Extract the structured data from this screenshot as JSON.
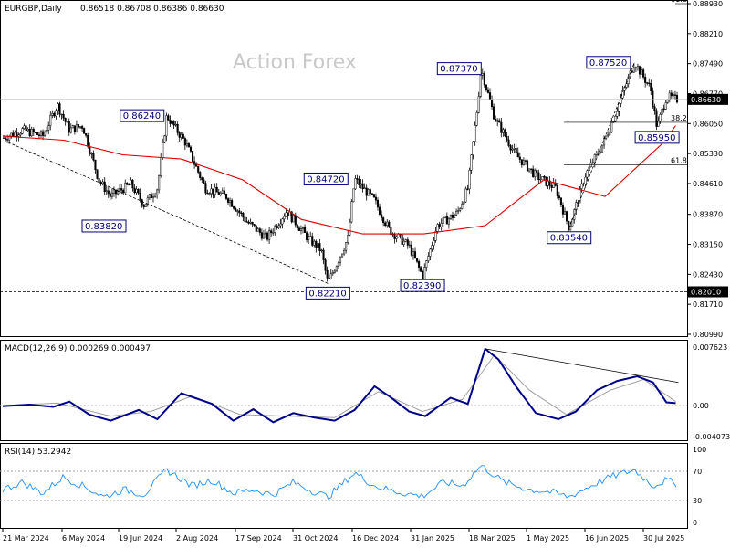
{
  "header": {
    "symbol": "EURGBP,Daily",
    "ohlc": "0.86518 0.86708 0.86386 0.86630",
    "watermark": "Action Forex"
  },
  "colors": {
    "candles": "#000000",
    "ma": "#dc0000",
    "macd_main": "#00008b",
    "macd_signal": "#a0a0a0",
    "rsi": "#1e90ff",
    "label_box": "#00007a",
    "grid": "#ffffff"
  },
  "chart_data": [
    {
      "type": "candlestick",
      "name": "price",
      "price_axis": [
        "0.88930",
        "0.88210",
        "0.87490",
        "0.86770",
        "0.86050",
        "0.85330",
        "0.84610",
        "0.83870",
        "0.83150",
        "0.82430",
        "0.81710",
        "0.80990"
      ],
      "ylim": [
        0.8099,
        0.8893
      ],
      "current_price": "0.86630",
      "horizontal_level": "0.82010",
      "fib_labels": [
        {
          "text": "61.8",
          "price": 0.8893
        },
        {
          "text": "38.2",
          "price": 0.8608
        },
        {
          "text": "61.8",
          "price": 0.8506
        }
      ],
      "annotations": [
        {
          "text": "0.86240",
          "x": "2024-07-20",
          "y": 0.8624,
          "side": "left"
        },
        {
          "text": "0.83820",
          "x": "2024-06-05",
          "y": 0.8382,
          "side": "below"
        },
        {
          "text": "0.84720",
          "x": "2024-12-05",
          "y": 0.8472,
          "side": "left"
        },
        {
          "text": "0.82210",
          "x": "2024-11-20",
          "y": 0.8221,
          "side": "below"
        },
        {
          "text": "0.87370",
          "x": "2025-03-15",
          "y": 0.8737,
          "side": "left"
        },
        {
          "text": "0.82390",
          "x": "2025-01-30",
          "y": 0.8239,
          "side": "below"
        },
        {
          "text": "0.83540",
          "x": "2025-05-20",
          "y": 0.8354,
          "side": "below"
        },
        {
          "text": "0.87520",
          "x": "2025-07-05",
          "y": 0.8752,
          "side": "left"
        },
        {
          "text": "0.85950",
          "x": "2025-07-25",
          "y": 0.8595,
          "side": "below"
        }
      ],
      "ma_line": [
        [
          "2024-03-21",
          0.8575
        ],
        [
          "2024-05-06",
          0.8565
        ],
        [
          "2024-06-19",
          0.853
        ],
        [
          "2024-08-02",
          0.852
        ],
        [
          "2024-09-17",
          0.847
        ],
        [
          "2024-10-31",
          0.8375
        ],
        [
          "2024-12-16",
          0.834
        ],
        [
          "2025-01-31",
          0.834
        ],
        [
          "2025-03-18",
          0.836
        ],
        [
          "2025-05-01",
          0.847
        ],
        [
          "2025-06-16",
          0.843
        ],
        [
          "2025-07-30",
          0.856
        ],
        [
          "2025-08-08",
          0.86
        ]
      ],
      "trendlines": [
        {
          "from": [
            "2024-03-25",
            0.856
          ],
          "to": [
            "2024-11-20",
            0.8221
          ],
          "style": "dashed"
        },
        {
          "from": [
            "2025-05-20",
            0.8354
          ],
          "to": [
            "2025-07-08",
            0.8752
          ],
          "style": "dashed"
        }
      ],
      "close_path": [
        [
          "2024-03-21",
          0.857
        ],
        [
          "2024-04-05",
          0.859
        ],
        [
          "2024-04-20",
          0.8575
        ],
        [
          "2024-05-01",
          0.865
        ],
        [
          "2024-05-10",
          0.859
        ],
        [
          "2024-05-20",
          0.86
        ],
        [
          "2024-06-01",
          0.847
        ],
        [
          "2024-06-10",
          0.843
        ],
        [
          "2024-06-25",
          0.846
        ],
        [
          "2024-07-05",
          0.841
        ],
        [
          "2024-07-15",
          0.845
        ],
        [
          "2024-07-22",
          0.8624
        ],
        [
          "2024-08-05",
          0.856
        ],
        [
          "2024-08-20",
          0.845
        ],
        [
          "2024-09-05",
          0.843
        ],
        [
          "2024-09-20",
          0.837
        ],
        [
          "2024-10-05",
          0.833
        ],
        [
          "2024-10-20",
          0.8395
        ],
        [
          "2024-11-05",
          0.833
        ],
        [
          "2024-11-15",
          0.83
        ],
        [
          "2024-11-20",
          0.8221
        ],
        [
          "2024-12-05",
          0.833
        ],
        [
          "2024-12-10",
          0.8472
        ],
        [
          "2024-12-25",
          0.842
        ],
        [
          "2025-01-05",
          0.835
        ],
        [
          "2025-01-20",
          0.831
        ],
        [
          "2025-01-30",
          0.8239
        ],
        [
          "2025-02-10",
          0.836
        ],
        [
          "2025-02-25",
          0.839
        ],
        [
          "2025-03-05",
          0.845
        ],
        [
          "2025-03-12",
          0.864
        ],
        [
          "2025-03-15",
          0.8737
        ],
        [
          "2025-03-25",
          0.862
        ],
        [
          "2025-04-10",
          0.853
        ],
        [
          "2025-04-25",
          0.848
        ],
        [
          "2025-05-10",
          0.845
        ],
        [
          "2025-05-20",
          0.8354
        ],
        [
          "2025-06-01",
          0.848
        ],
        [
          "2025-06-15",
          0.856
        ],
        [
          "2025-06-25",
          0.864
        ],
        [
          "2025-07-08",
          0.8752
        ],
        [
          "2025-07-20",
          0.869
        ],
        [
          "2025-07-25",
          0.8595
        ],
        [
          "2025-08-01",
          0.867
        ],
        [
          "2025-08-08",
          0.8663
        ]
      ]
    },
    {
      "type": "line",
      "name": "MACD",
      "label": "MACD(12,26,9) 0.000269 0.000497",
      "ylim": [
        -0.004073,
        0.007623
      ],
      "y_ticks": [
        "0.007623",
        "0.00",
        "-0.004073"
      ],
      "series": [
        {
          "name": "main",
          "points": [
            [
              "2024-03-21",
              -0.0001
            ],
            [
              "2024-04-10",
              0.0001
            ],
            [
              "2024-04-28",
              -0.0002
            ],
            [
              "2024-05-10",
              0.0005
            ],
            [
              "2024-05-25",
              -0.0012
            ],
            [
              "2024-06-10",
              -0.002
            ],
            [
              "2024-07-01",
              -0.0006
            ],
            [
              "2024-07-15",
              -0.0018
            ],
            [
              "2024-08-02",
              0.0016
            ],
            [
              "2024-08-25",
              0.0002
            ],
            [
              "2024-09-10",
              -0.002
            ],
            [
              "2024-09-25",
              -0.0005
            ],
            [
              "2024-10-10",
              -0.0022
            ],
            [
              "2024-10-25",
              -0.001
            ],
            [
              "2024-11-10",
              -0.0016
            ],
            [
              "2024-11-25",
              -0.002
            ],
            [
              "2024-12-10",
              -0.0006
            ],
            [
              "2024-12-25",
              0.0025
            ],
            [
              "2025-01-05",
              0.0012
            ],
            [
              "2025-01-20",
              -0.0008
            ],
            [
              "2025-02-01",
              -0.0014
            ],
            [
              "2025-02-20",
              0.001
            ],
            [
              "2025-03-05",
              0.0002
            ],
            [
              "2025-03-18",
              0.0074
            ],
            [
              "2025-03-28",
              0.006
            ],
            [
              "2025-04-10",
              0.0025
            ],
            [
              "2025-04-25",
              -0.001
            ],
            [
              "2025-05-12",
              -0.0018
            ],
            [
              "2025-05-25",
              -0.0008
            ],
            [
              "2025-06-10",
              0.002
            ],
            [
              "2025-06-25",
              0.0032
            ],
            [
              "2025-07-10",
              0.0038
            ],
            [
              "2025-07-22",
              0.003
            ],
            [
              "2025-08-01",
              0.0004
            ],
            [
              "2025-08-08",
              0.0003
            ]
          ]
        },
        {
          "name": "signal",
          "points": [
            [
              "2024-03-21",
              0.0
            ],
            [
              "2024-05-01",
              0.0003
            ],
            [
              "2024-06-10",
              -0.0014
            ],
            [
              "2024-07-10",
              -0.0008
            ],
            [
              "2024-08-10",
              0.0012
            ],
            [
              "2024-09-15",
              -0.0012
            ],
            [
              "2024-10-20",
              -0.0014
            ],
            [
              "2024-11-25",
              -0.0016
            ],
            [
              "2024-12-28",
              0.0018
            ],
            [
              "2025-01-30",
              -0.0008
            ],
            [
              "2025-03-01",
              0.0008
            ],
            [
              "2025-03-25",
              0.0066
            ],
            [
              "2025-04-20",
              0.002
            ],
            [
              "2025-05-18",
              -0.0012
            ],
            [
              "2025-06-20",
              0.002
            ],
            [
              "2025-07-15",
              0.0034
            ],
            [
              "2025-08-08",
              0.0005
            ]
          ]
        }
      ],
      "trendlines": [
        {
          "from": [
            "2025-03-18",
            0.0074
          ],
          "to": [
            "2025-08-10",
            0.003
          ],
          "style": "solid"
        }
      ]
    },
    {
      "type": "line",
      "name": "RSI",
      "label": "RSI(14) 53.2942",
      "ylim": [
        0,
        100
      ],
      "y_ticks": [
        "100",
        "70",
        "30",
        "0"
      ],
      "levels": [
        70,
        30
      ],
      "series": [
        {
          "name": "rsi",
          "points": [
            [
              "2024-03-21",
              45
            ],
            [
              "2024-04-05",
              55
            ],
            [
              "2024-04-20",
              40
            ],
            [
              "2024-05-05",
              62
            ],
            [
              "2024-05-20",
              50
            ],
            [
              "2024-06-05",
              35
            ],
            [
              "2024-06-20",
              45
            ],
            [
              "2024-07-05",
              38
            ],
            [
              "2024-07-22",
              72
            ],
            [
              "2024-08-10",
              50
            ],
            [
              "2024-08-25",
              58
            ],
            [
              "2024-09-10",
              40
            ],
            [
              "2024-09-25",
              45
            ],
            [
              "2024-10-10",
              38
            ],
            [
              "2024-10-25",
              55
            ],
            [
              "2024-11-10",
              42
            ],
            [
              "2024-11-20",
              35
            ],
            [
              "2024-12-10",
              68
            ],
            [
              "2024-12-25",
              50
            ],
            [
              "2025-01-10",
              42
            ],
            [
              "2025-01-30",
              36
            ],
            [
              "2025-02-15",
              55
            ],
            [
              "2025-03-01",
              50
            ],
            [
              "2025-03-15",
              78
            ],
            [
              "2025-04-01",
              55
            ],
            [
              "2025-04-20",
              45
            ],
            [
              "2025-05-05",
              42
            ],
            [
              "2025-05-20",
              35
            ],
            [
              "2025-06-05",
              50
            ],
            [
              "2025-06-20",
              62
            ],
            [
              "2025-07-08",
              72
            ],
            [
              "2025-07-22",
              50
            ],
            [
              "2025-08-01",
              58
            ],
            [
              "2025-08-08",
              53
            ]
          ]
        }
      ]
    }
  ],
  "x_axis": {
    "labels": [
      "21 Mar 2024",
      "6 May 2024",
      "19 Jun 2024",
      "2 Aug 2024",
      "17 Sep 2024",
      "31 Oct 2024",
      "16 Dec 2024",
      "31 Jan 2025",
      "18 Mar 2025",
      "1 May 2025",
      "16 Jun 2025",
      "30 Jul 2025"
    ]
  }
}
